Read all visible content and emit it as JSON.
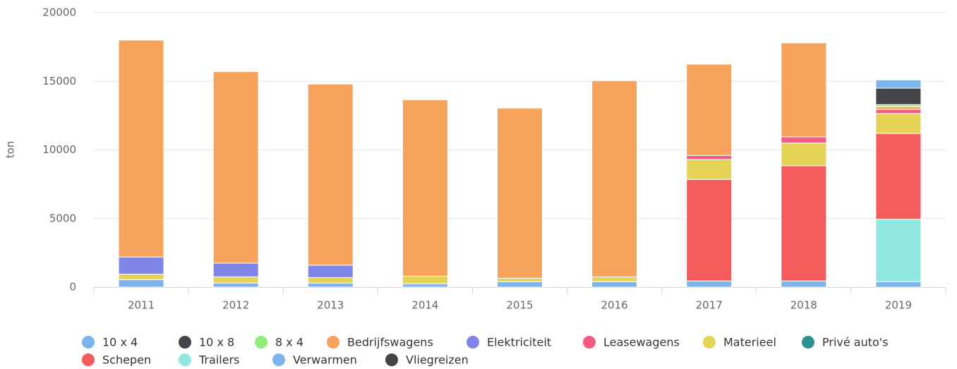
{
  "chart_data": {
    "type": "bar",
    "stacked": true,
    "y_label": "ton",
    "categories": [
      "2011",
      "2012",
      "2013",
      "2014",
      "2015",
      "2016",
      "2017",
      "2018",
      "2019"
    ],
    "ylim": [
      0,
      20000
    ],
    "yticks": [
      0,
      5000,
      10000,
      15000,
      20000
    ],
    "grid": true,
    "series": [
      {
        "name": "10 x 4",
        "color": "#7cb5ec",
        "values": [
          0,
          0,
          0,
          0,
          0,
          0,
          0,
          0,
          600
        ]
      },
      {
        "name": "10 x 8",
        "color": "#434348",
        "values": [
          0,
          0,
          0,
          0,
          0,
          0,
          0,
          0,
          1200
        ]
      },
      {
        "name": "8 x 4",
        "color": "#90ed7d",
        "values": [
          0,
          0,
          0,
          0,
          0,
          0,
          0,
          0,
          150
        ]
      },
      {
        "name": "Bedrijfswagens",
        "color": "#f7a35c",
        "values": [
          15800,
          13950,
          13200,
          12850,
          12400,
          14300,
          6650,
          6850,
          200
        ]
      },
      {
        "name": "Elektriciteit",
        "color": "#8085e9",
        "values": [
          1250,
          1000,
          900,
          0,
          0,
          0,
          0,
          0,
          0
        ]
      },
      {
        "name": "Leasewagens",
        "color": "#f15c80",
        "values": [
          0,
          0,
          0,
          0,
          0,
          0,
          300,
          450,
          300
        ]
      },
      {
        "name": "Materieel",
        "color": "#e4d354",
        "values": [
          400,
          450,
          400,
          550,
          250,
          350,
          1450,
          1650,
          1450
        ]
      },
      {
        "name": "Privé auto's",
        "color": "#2b908f",
        "values": [
          0,
          0,
          0,
          0,
          0,
          0,
          0,
          0,
          0
        ]
      },
      {
        "name": "Schepen",
        "color": "#f45b5b",
        "values": [
          0,
          0,
          0,
          0,
          0,
          0,
          7400,
          8400,
          6250
        ]
      },
      {
        "name": "Trailers",
        "color": "#91e8e1",
        "values": [
          0,
          0,
          0,
          0,
          0,
          0,
          0,
          0,
          4550
        ]
      },
      {
        "name": "Verwarmen",
        "color": "#7cb5ec",
        "values": [
          550,
          300,
          300,
          250,
          400,
          400,
          450,
          450,
          400
        ]
      },
      {
        "name": "Vliegreizen",
        "color": "#434348",
        "values": [
          0,
          0,
          0,
          0,
          0,
          0,
          0,
          0,
          0
        ]
      }
    ]
  }
}
